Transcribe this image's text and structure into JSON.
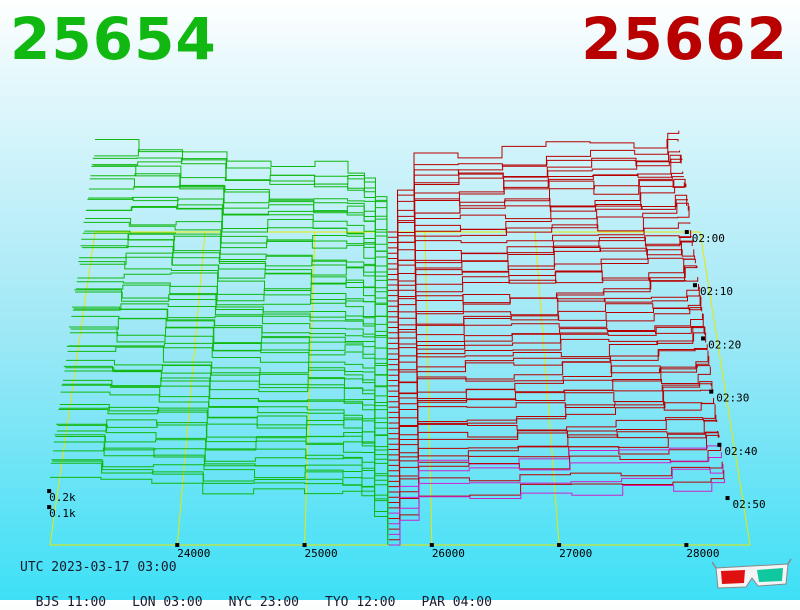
{
  "header": {
    "bid_price": "25654",
    "ask_price": "25662"
  },
  "footer": {
    "utc": "UTC 2023-03-17 03:00",
    "timezones": [
      "BJS 11:00",
      "LON 03:00",
      "NYC 23:00",
      "TYO 12:00",
      "PAR 04:00"
    ]
  },
  "colors": {
    "bid": "#11b811",
    "ask": "#b80000",
    "grid": "#e8e800",
    "highlight": "#cc22cc"
  },
  "icons": {
    "corner": "3d-glasses-icon"
  },
  "chart_data": {
    "type": "area",
    "price_ticks": [
      24000,
      25000,
      26000,
      27000,
      28000
    ],
    "price_tick_labels": [
      "24000",
      "25000",
      "26000",
      "27000",
      "28000"
    ],
    "price_range": [
      23000,
      28500
    ],
    "time_ticks": [
      "02:00",
      "02:10",
      "02:20",
      "02:30",
      "02:40",
      "02:50"
    ],
    "depth_ticks": [
      0.1,
      0.2
    ],
    "depth_tick_labels": [
      "0.1k",
      "0.2k"
    ],
    "mid_price": 25658,
    "snapshots": 60,
    "bid_levels": [
      {
        "price": 23000,
        "depth": 0.41
      },
      {
        "price": 23400,
        "depth": 0.4
      },
      {
        "price": 23800,
        "depth": 0.39
      },
      {
        "price": 24200,
        "depth": 0.33
      },
      {
        "price": 24600,
        "depth": 0.32
      },
      {
        "price": 25000,
        "depth": 0.31
      },
      {
        "price": 25300,
        "depth": 0.3
      },
      {
        "price": 25450,
        "depth": 0.27
      },
      {
        "price": 25550,
        "depth": 0.18
      },
      {
        "price": 25654,
        "depth": 0.0
      }
    ],
    "ask_levels": [
      {
        "price": 25662,
        "depth": 0.0
      },
      {
        "price": 25750,
        "depth": 0.16
      },
      {
        "price": 25900,
        "depth": 0.28
      },
      {
        "price": 26300,
        "depth": 0.29
      },
      {
        "price": 26700,
        "depth": 0.3
      },
      {
        "price": 27100,
        "depth": 0.32
      },
      {
        "price": 27500,
        "depth": 0.33
      },
      {
        "price": 27900,
        "depth": 0.35
      },
      {
        "price": 28200,
        "depth": 0.37
      },
      {
        "price": 28300,
        "depth": 0.38
      }
    ]
  }
}
